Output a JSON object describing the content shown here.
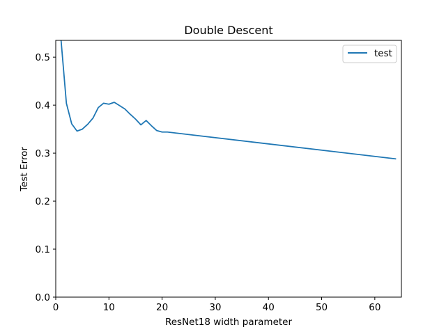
{
  "chart_data": {
    "type": "line",
    "title": "Double Descent",
    "xlabel": "ResNet18 width parameter",
    "ylabel": "Test Error",
    "xlim": [
      0,
      65
    ],
    "ylim": [
      0.0,
      0.535
    ],
    "xticks": [
      0,
      10,
      20,
      30,
      40,
      50,
      60
    ],
    "xtick_labels": [
      "0",
      "10",
      "20",
      "30",
      "40",
      "50",
      "60"
    ],
    "yticks": [
      0.0,
      0.1,
      0.2,
      0.3,
      0.4,
      0.5
    ],
    "ytick_labels": [
      "0.0",
      "0.1",
      "0.2",
      "0.3",
      "0.4",
      "0.5"
    ],
    "grid": false,
    "legend_position": "top-right",
    "colors": {
      "test": "#1f77b4"
    },
    "series": [
      {
        "name": "test",
        "x": [
          1,
          2,
          3,
          4,
          5,
          6,
          7,
          8,
          9,
          10,
          11,
          12,
          13,
          14,
          15,
          16,
          17,
          18,
          19,
          20,
          21,
          64
        ],
        "y": [
          0.535,
          0.404,
          0.361,
          0.346,
          0.35,
          0.36,
          0.373,
          0.395,
          0.404,
          0.402,
          0.406,
          0.399,
          0.392,
          0.381,
          0.371,
          0.359,
          0.368,
          0.357,
          0.347,
          0.344,
          0.344,
          0.288
        ]
      }
    ]
  }
}
